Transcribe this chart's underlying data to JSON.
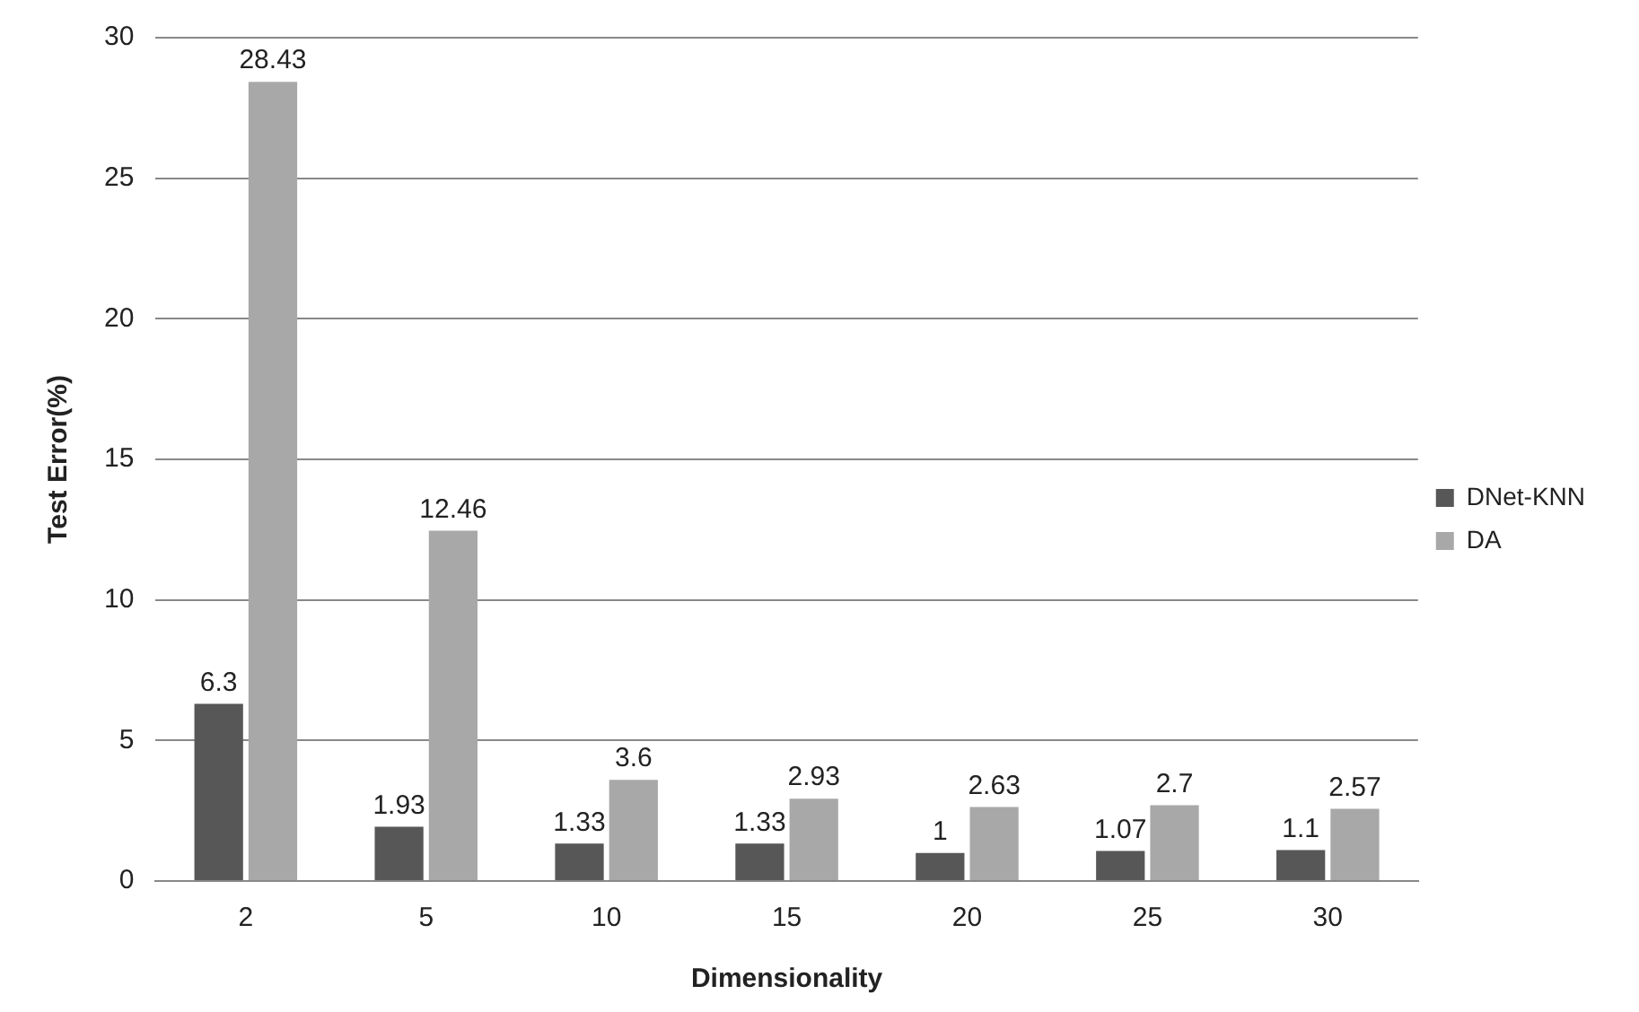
{
  "chart_data": {
    "type": "bar",
    "xlabel": "Dimensionality",
    "ylabel": "Test Error(%)",
    "categories": [
      "2",
      "5",
      "10",
      "15",
      "20",
      "25",
      "30"
    ],
    "series": [
      {
        "name": "DNet-KNN",
        "color": "#575757",
        "values": [
          6.3,
          1.93,
          1.33,
          1.33,
          1,
          1.07,
          1.1
        ]
      },
      {
        "name": "DA",
        "color": "#a8a8a8",
        "values": [
          28.43,
          12.46,
          3.6,
          2.93,
          2.63,
          2.7,
          2.57
        ]
      }
    ],
    "ylim": [
      0,
      30
    ],
    "yticks": [
      0,
      5,
      10,
      15,
      20,
      25,
      30
    ],
    "grid": "y",
    "legend": "right",
    "data_labels": true
  }
}
